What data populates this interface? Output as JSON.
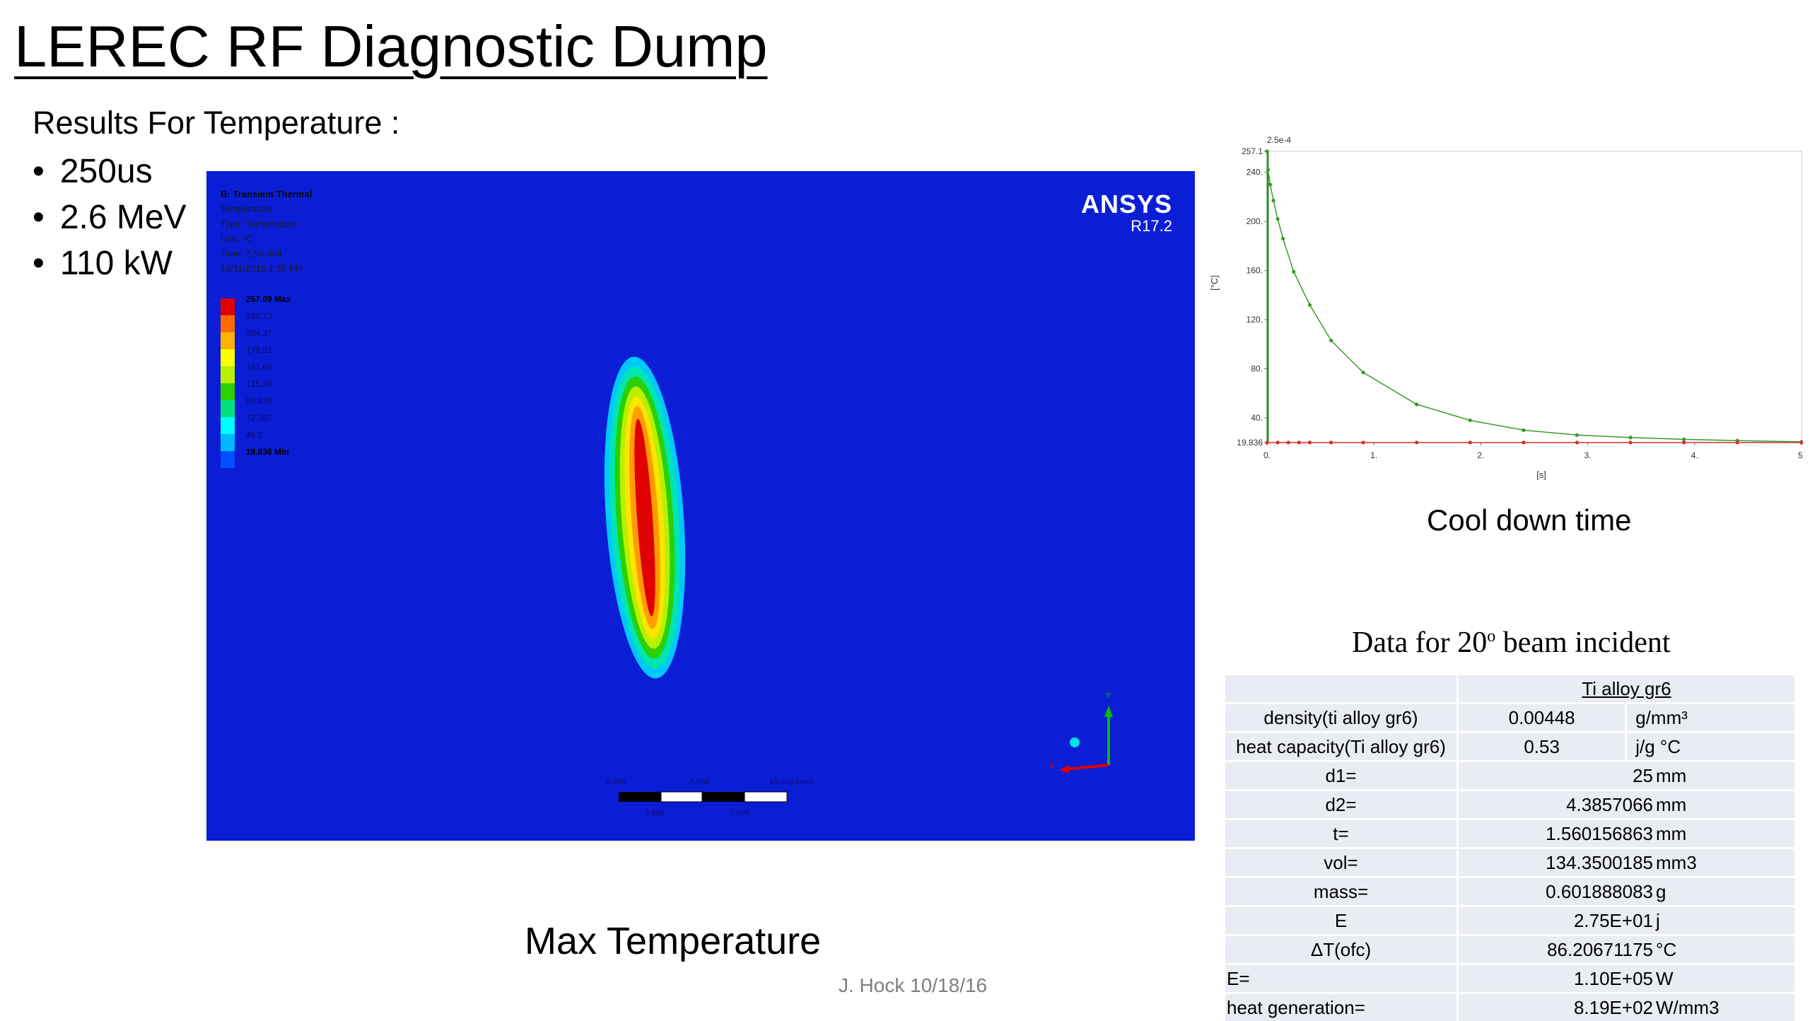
{
  "title": "LEREC RF Diagnostic Dump",
  "results": {
    "heading": "Results For  Temperature :",
    "bullets": [
      "250us",
      "2.6 MeV",
      "110 kW"
    ]
  },
  "simulation": {
    "brand": "ANSYS",
    "version": "R17.2",
    "info_title": "B: Transient Thermal",
    "info_lines": [
      "Temperature",
      "Type: Temperature",
      "Unit: °C",
      "Time: 2.5e-004",
      "10/11/2016 1:35 PM"
    ],
    "legend": {
      "max_label": "257.09 Max",
      "min_label": "19.836 Min",
      "levels": [
        "230.73",
        "204.37",
        "178.01",
        "151.65",
        "125.29",
        "98.929",
        "72.567",
        "46.2"
      ],
      "colors": [
        "#e00000",
        "#ff6a00",
        "#ffb000",
        "#ffff00",
        "#b8f000",
        "#2ad000",
        "#00e080",
        "#00ffff",
        "#00b8ff",
        "#0050ff"
      ]
    },
    "scale_top": [
      "0.000",
      "5.000",
      "10.000 (mm)"
    ],
    "scale_bottom": [
      "2.500",
      "7.500"
    ],
    "axis_labels": {
      "y": "Y",
      "x": "X"
    }
  },
  "captions": {
    "max_temperature": "Max Temperature",
    "author": "J. Hock 10/18/16",
    "cool_down": "Cool down time"
  },
  "chart_data": {
    "type": "line",
    "xlabel": "[s]",
    "ylabel": "[°C]",
    "top_label": "2.5e-4",
    "xlim": [
      0,
      5
    ],
    "ylim": [
      19.836,
      257.1
    ],
    "x_ticks": [
      "0.",
      "1.",
      "2.",
      "3.",
      "4.",
      "5."
    ],
    "y_ticks": [
      {
        "label": "257.1",
        "value": 257.1
      },
      {
        "label": "240.",
        "value": 240
      },
      {
        "label": "200.",
        "value": 200
      },
      {
        "label": "160.",
        "value": 160
      },
      {
        "label": "120.",
        "value": 120
      },
      {
        "label": "80.",
        "value": 80
      },
      {
        "label": "40.",
        "value": 40
      },
      {
        "label": "19.836",
        "value": 19.836
      }
    ],
    "series": [
      {
        "color": "#3a9a2a",
        "x": [
          0.00025,
          0.01,
          0.03,
          0.06,
          0.1,
          0.15,
          0.25,
          0.4,
          0.6,
          0.9,
          1.4,
          1.9,
          2.4,
          2.9,
          3.4,
          3.9,
          4.4,
          5.0
        ],
        "y": [
          257.1,
          242,
          230,
          217,
          202,
          186,
          159,
          132,
          103,
          77,
          51,
          38,
          30,
          26,
          24,
          22.5,
          21.5,
          20.5
        ]
      },
      {
        "color": "#d43030",
        "x": [
          0.00025,
          0.1,
          0.2,
          0.3,
          0.4,
          0.6,
          0.9,
          1.4,
          1.9,
          2.4,
          2.9,
          3.4,
          3.9,
          4.4,
          5.0
        ],
        "y": [
          19.836,
          19.9,
          19.9,
          19.9,
          19.9,
          19.9,
          19.9,
          19.9,
          19.9,
          19.9,
          19.9,
          19.9,
          19.9,
          19.9,
          19.9
        ]
      }
    ]
  },
  "data_table": {
    "heading_pre": "Data for 20",
    "heading_sup": "o",
    "heading_post": " beam incident",
    "material": "Ti alloy gr6",
    "rows3": [
      {
        "label": "density(ti alloy gr6)",
        "value": "0.00448",
        "unit": "g/mm³"
      },
      {
        "label": "heat capacity(Ti alloy gr6)",
        "value": "0.53",
        "unit": "j/g °C"
      }
    ],
    "rows2": [
      {
        "label": "d1=",
        "value": "25",
        "unit": "mm",
        "align": "center"
      },
      {
        "label": "d2=",
        "value": "4.3857066",
        "unit": "mm",
        "align": "center"
      },
      {
        "label": "t=",
        "value": "1.560156863",
        "unit": "mm",
        "align": "center"
      },
      {
        "label": "vol=",
        "value": "134.3500185",
        "unit": "mm3",
        "align": "center"
      },
      {
        "label": "mass=",
        "value": "0.601888083",
        "unit": "g",
        "align": "center"
      },
      {
        "label": "E",
        "value": "2.75E+01",
        "unit": "j",
        "align": "center"
      },
      {
        "label": "ΔT(ofc)",
        "value": "86.20671175",
        "unit": "°C",
        "align": "center"
      },
      {
        "label": "E=",
        "value": "1.10E+05",
        "unit": "W",
        "align": "left"
      },
      {
        "label": "heat generation=",
        "value": "8.19E+02",
        "unit": "W/mm3",
        "align": "left"
      }
    ]
  }
}
